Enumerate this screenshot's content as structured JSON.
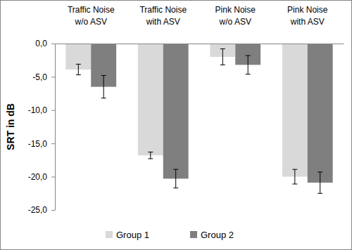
{
  "chart_data": {
    "type": "bar",
    "categories": [
      "Traffic Noise w/o ASV",
      "Traffic Noise with ASV",
      "Pink Noise w/o ASV",
      "Pink Noise with ASV"
    ],
    "series": [
      {
        "name": "Group 1",
        "color": "#d9d9d9",
        "values": [
          -3.9,
          -16.8,
          -2.0,
          -20.0
        ],
        "errors": [
          0.8,
          0.5,
          1.2,
          1.1
        ]
      },
      {
        "name": "Group 2",
        "color": "#7f7f7f",
        "values": [
          -6.5,
          -20.3,
          -3.2,
          -20.9
        ],
        "errors": [
          1.7,
          1.4,
          1.4,
          1.6
        ]
      }
    ],
    "y_label": "SRT in dB",
    "ylim": [
      -25,
      0
    ],
    "yticks": [
      {
        "value": 0,
        "label": "0,0"
      },
      {
        "value": -5,
        "label": "-5,0"
      },
      {
        "value": -10,
        "label": "-10,0"
      },
      {
        "value": -15,
        "label": "-15,0"
      },
      {
        "value": -20,
        "label": "-20,0"
      },
      {
        "value": -25,
        "label": "-25,0"
      }
    ],
    "grid": false,
    "legend": "bottom"
  }
}
